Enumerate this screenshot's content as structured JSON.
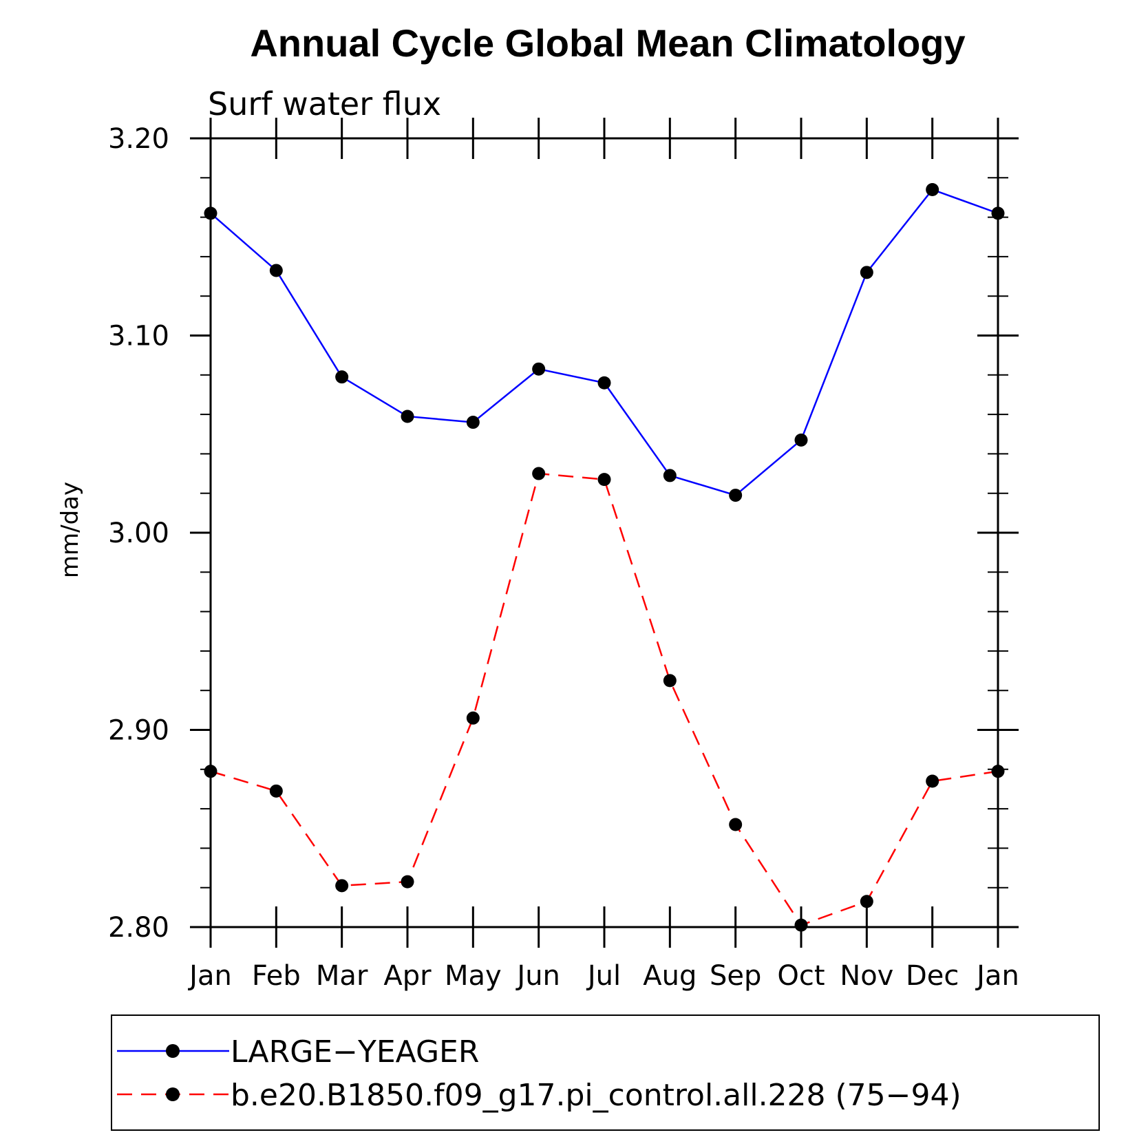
{
  "chart_data": {
    "type": "line",
    "title": "Annual Cycle Global Mean Climatology",
    "subtitle": "Surf water flux",
    "ylabel": "mm/day",
    "xlabel": "",
    "categories": [
      "Jan",
      "Feb",
      "Mar",
      "Apr",
      "May",
      "Jun",
      "Jul",
      "Aug",
      "Sep",
      "Oct",
      "Nov",
      "Dec",
      "Jan"
    ],
    "ylim": [
      2.8,
      3.2
    ],
    "yticks": [
      "2.80",
      "2.90",
      "3.00",
      "3.10",
      "3.20"
    ],
    "ytick_values": [
      2.8,
      2.9,
      3.0,
      3.1,
      3.2
    ],
    "series": [
      {
        "name": "LARGE−YEAGER",
        "color": "#0000ff",
        "dash": "solid",
        "values": [
          3.162,
          3.133,
          3.079,
          3.059,
          3.056,
          3.083,
          3.076,
          3.029,
          3.019,
          3.047,
          3.132,
          3.174,
          3.162
        ]
      },
      {
        "name": "b.e20.B1850.f09_g17.pi_control.all.228 (75−94)",
        "color": "#ff0000",
        "dash": "dashed",
        "values": [
          2.879,
          2.869,
          2.821,
          2.823,
          2.906,
          3.03,
          3.027,
          2.925,
          2.852,
          2.801,
          2.813,
          2.874,
          2.879
        ]
      }
    ],
    "marker_color": "#000000",
    "legend_position": "bottom"
  }
}
